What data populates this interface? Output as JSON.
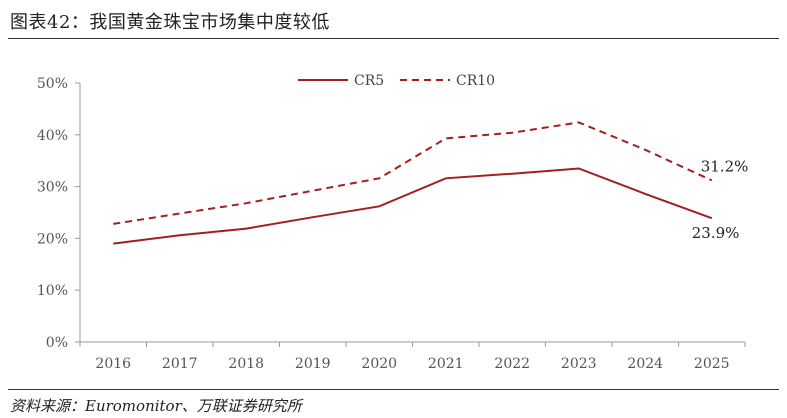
{
  "title": "图表42：我国黄金珠宝市场集中度较低",
  "source": "资料来源：Euromonitor、万联证券研究所",
  "chart_data": {
    "type": "line",
    "x": [
      "2016",
      "2017",
      "2018",
      "2019",
      "2020",
      "2021",
      "2022",
      "2023",
      "2024",
      "2025"
    ],
    "ylim": [
      0,
      50
    ],
    "yticks": [
      0,
      10,
      20,
      30,
      40,
      50
    ],
    "ytick_labels": [
      "0%",
      "10%",
      "20%",
      "30%",
      "40%",
      "50%"
    ],
    "series": [
      {
        "name": "CR5",
        "style": "solid",
        "color": "#a31f1f",
        "values": [
          19.0,
          20.6,
          21.9,
          24.1,
          26.2,
          31.6,
          32.5,
          33.5,
          28.6,
          23.9
        ]
      },
      {
        "name": "CR10",
        "style": "dashed",
        "color": "#a31f1f",
        "values": [
          22.8,
          24.8,
          26.8,
          29.2,
          31.6,
          39.3,
          40.4,
          42.4,
          37.1,
          31.2
        ]
      }
    ],
    "annotations": [
      {
        "series": "CR10",
        "index": 9,
        "text": "31.2%"
      },
      {
        "series": "CR5",
        "index": 9,
        "text": "23.9%"
      }
    ],
    "legend": "top-center",
    "grid": false
  }
}
